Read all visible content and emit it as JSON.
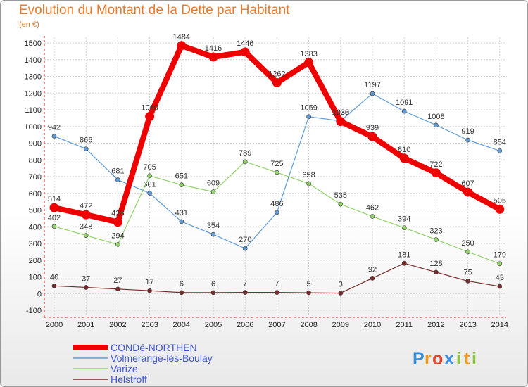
{
  "chart_data": {
    "type": "line",
    "title": "Evolution du Montant de la Dette par Habitant",
    "ylabel": "(en €)",
    "xlabel": "",
    "x": [
      "2000",
      "2001",
      "2002",
      "2003",
      "2004",
      "2005",
      "2006",
      "2007",
      "2008",
      "2009",
      "2010",
      "2011",
      "2012",
      "2013",
      "2014"
    ],
    "ylim": [
      -100,
      1500
    ],
    "yticks": [
      -100,
      0,
      100,
      200,
      300,
      400,
      500,
      600,
      700,
      800,
      900,
      1000,
      1100,
      1200,
      1300,
      1400,
      1500
    ],
    "grid": true,
    "legend_position": "bottom-left",
    "series": [
      {
        "name": "Volmerange-lès-Boulay",
        "color": "#5f9bd6",
        "values": [
          942,
          866,
          681,
          601,
          431,
          354,
          270,
          486,
          1059,
          1033,
          1197,
          1091,
          1008,
          919,
          854
        ]
      },
      {
        "name": "Varize",
        "color": "#92d36b",
        "values": [
          402,
          348,
          294,
          705,
          651,
          609,
          789,
          725,
          658,
          535,
          462,
          394,
          323,
          250,
          179
        ]
      },
      {
        "name": "Helstroff",
        "color": "#7a2a2a",
        "values": [
          46,
          37,
          27,
          17,
          6,
          6,
          7,
          7,
          5,
          3,
          92,
          181,
          128,
          75,
          43
        ]
      },
      {
        "name": "CONDé-NORTHEN",
        "color": "#ee0000",
        "values": [
          514,
          472,
          428,
          1060,
          1484,
          1416,
          1446,
          1262,
          1383,
          1030,
          939,
          810,
          722,
          607,
          505
        ]
      }
    ],
    "legend_order": [
      "CONDé-NORTHEN",
      "Volmerange-lès-Boulay",
      "Varize",
      "Helstroff"
    ]
  },
  "logo": {
    "letters": [
      "P",
      "r",
      "o",
      "x",
      "i",
      "t",
      "i"
    ],
    "colors": [
      "#3a8fd9",
      "#f39a1b",
      "#e8442c",
      "#3a8fd9",
      "#8cc63f",
      "#f39a1b",
      "#8cc63f"
    ]
  }
}
